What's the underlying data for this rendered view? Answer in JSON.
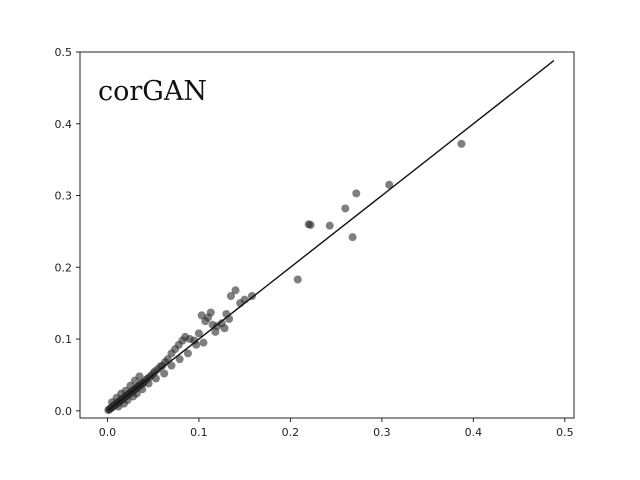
{
  "chart_data": {
    "type": "scatter",
    "title": "corGAN",
    "xlabel": "",
    "ylabel": "",
    "xlim": [
      -0.03,
      0.51
    ],
    "ylim": [
      -0.01,
      0.5
    ],
    "x_ticks": [
      "0.0",
      "0.1",
      "0.2",
      "0.3",
      "0.4",
      "0.5"
    ],
    "y_ticks": [
      "0.0",
      "0.1",
      "0.2",
      "0.3",
      "0.4",
      "0.5"
    ],
    "grid": false,
    "legend": "none",
    "point_color": "#2a2a2a",
    "reference_line": {
      "x": [
        0.0,
        0.488
      ],
      "y": [
        0.0,
        0.488
      ]
    },
    "series": [
      {
        "x": [
          0.001,
          0.002,
          0.003,
          0.004,
          0.005,
          0.006,
          0.007,
          0.008,
          0.009,
          0.01,
          0.011,
          0.012,
          0.013,
          0.014,
          0.015,
          0.016,
          0.017,
          0.018,
          0.019,
          0.02,
          0.021,
          0.022,
          0.023,
          0.024,
          0.025,
          0.026,
          0.027,
          0.028,
          0.029,
          0.03,
          0.031,
          0.032,
          0.033,
          0.034,
          0.035,
          0.036,
          0.037,
          0.038,
          0.039,
          0.04,
          0.042,
          0.044,
          0.046,
          0.048,
          0.05,
          0.052,
          0.055,
          0.058,
          0.06,
          0.063,
          0.066,
          0.07,
          0.074,
          0.078,
          0.082,
          0.085,
          0.09,
          0.095,
          0.1,
          0.103,
          0.107,
          0.11,
          0.113,
          0.115,
          0.12,
          0.125,
          0.13,
          0.135,
          0.14,
          0.145,
          0.15,
          0.158,
          0.005,
          0.01,
          0.015,
          0.02,
          0.025,
          0.03,
          0.035,
          0.012,
          0.018,
          0.022,
          0.028,
          0.032,
          0.038,
          0.045,
          0.053,
          0.062,
          0.07,
          0.079,
          0.088,
          0.097,
          0.105,
          0.118,
          0.128,
          0.133,
          0.208,
          0.22,
          0.222,
          0.243,
          0.26,
          0.268,
          0.272,
          0.308,
          0.387
        ],
        "y": [
          0.001,
          0.002,
          0.003,
          0.004,
          0.005,
          0.006,
          0.007,
          0.008,
          0.009,
          0.01,
          0.011,
          0.012,
          0.013,
          0.014,
          0.015,
          0.016,
          0.017,
          0.018,
          0.019,
          0.02,
          0.021,
          0.022,
          0.023,
          0.024,
          0.025,
          0.026,
          0.027,
          0.028,
          0.029,
          0.03,
          0.031,
          0.032,
          0.033,
          0.034,
          0.035,
          0.036,
          0.037,
          0.038,
          0.039,
          0.04,
          0.043,
          0.045,
          0.047,
          0.049,
          0.052,
          0.055,
          0.058,
          0.062,
          0.063,
          0.068,
          0.072,
          0.08,
          0.086,
          0.092,
          0.098,
          0.103,
          0.1,
          0.098,
          0.108,
          0.133,
          0.125,
          0.13,
          0.137,
          0.12,
          0.118,
          0.122,
          0.135,
          0.16,
          0.168,
          0.15,
          0.155,
          0.16,
          0.012,
          0.018,
          0.024,
          0.028,
          0.035,
          0.042,
          0.048,
          0.006,
          0.01,
          0.015,
          0.02,
          0.024,
          0.03,
          0.038,
          0.045,
          0.052,
          0.063,
          0.072,
          0.08,
          0.092,
          0.095,
          0.11,
          0.115,
          0.128,
          0.183,
          0.26,
          0.259,
          0.258,
          0.282,
          0.242,
          0.303,
          0.315,
          0.372
        ]
      }
    ]
  }
}
